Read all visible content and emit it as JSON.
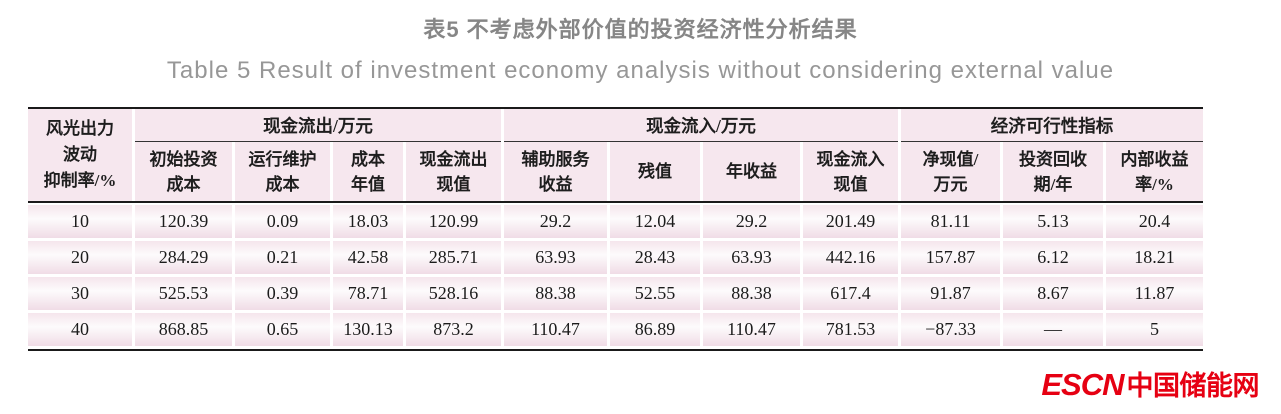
{
  "page": {
    "title_cn": "表5  不考虑外部价值的投资经济性分析结果",
    "title_en": "Table 5  Result of investment economy analysis without considering external value"
  },
  "colors": {
    "logo_red": "#e60012",
    "header_pink": "#f6e7ee",
    "rule_dark": "#1a1a1a"
  },
  "table": {
    "corner": [
      "风光出力",
      "波动",
      "抑制率/%"
    ],
    "groups": [
      {
        "label": "现金流出/万元",
        "cols": [
          {
            "l1": "初始投资",
            "l2": "成本"
          },
          {
            "l1": "运行维护",
            "l2": "成本"
          },
          {
            "l1": "成本",
            "l2": "年值"
          },
          {
            "l1": "现金流出",
            "l2": "现值"
          }
        ]
      },
      {
        "label": "现金流入/万元",
        "cols": [
          {
            "l1": "辅助服务",
            "l2": "收益"
          },
          {
            "l1": "残值",
            "l2": ""
          },
          {
            "l1": "年收益",
            "l2": ""
          },
          {
            "l1": "现金流入",
            "l2": "现值"
          }
        ]
      },
      {
        "label": "经济可行性指标",
        "cols": [
          {
            "l1": "净现值/",
            "l2": "万元"
          },
          {
            "l1": "投资回收",
            "l2": "期/年"
          },
          {
            "l1": "内部收益",
            "l2": "率/%"
          }
        ]
      }
    ],
    "rows": [
      {
        "cells": [
          "10",
          "120.39",
          "0.09",
          "18.03",
          "120.99",
          "29.2",
          "12.04",
          "29.2",
          "201.49",
          "81.11",
          "5.13",
          "20.4"
        ]
      },
      {
        "cells": [
          "20",
          "284.29",
          "0.21",
          "42.58",
          "285.71",
          "63.93",
          "28.43",
          "63.93",
          "442.16",
          "157.87",
          "6.12",
          "18.21"
        ]
      },
      {
        "cells": [
          "30",
          "525.53",
          "0.39",
          "78.71",
          "528.16",
          "88.38",
          "52.55",
          "88.38",
          "617.4",
          "91.87",
          "8.67",
          "11.87"
        ]
      },
      {
        "cells": [
          "40",
          "868.85",
          "0.65",
          "130.13",
          "873.2",
          "110.47",
          "86.89",
          "110.47",
          "781.53",
          "−87.33",
          "—",
          "5"
        ]
      }
    ]
  },
  "logo": {
    "en": "ESCN",
    "cn": "中国储能网"
  }
}
